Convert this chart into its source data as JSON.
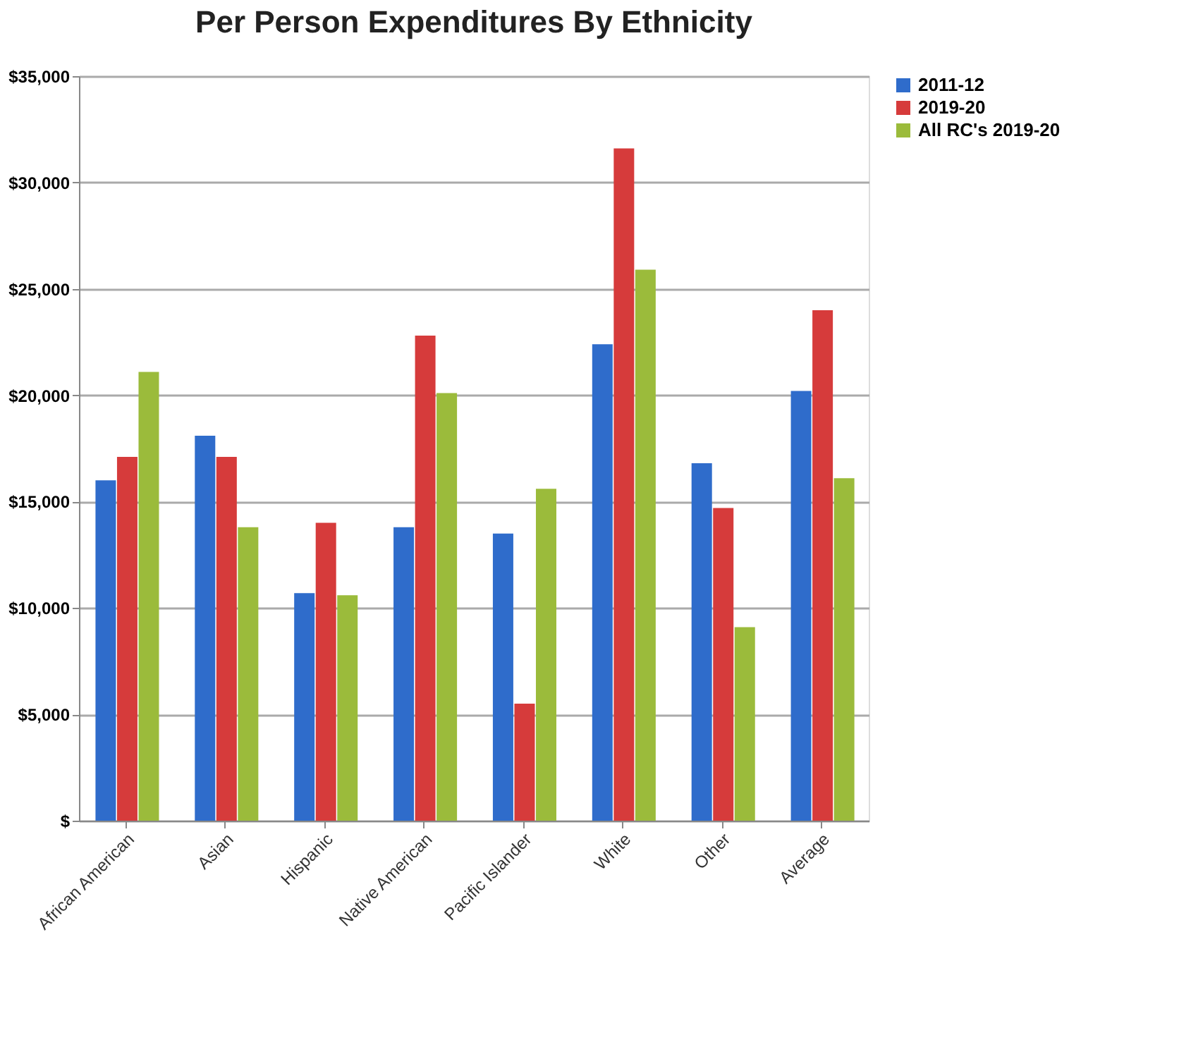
{
  "chart_data": {
    "type": "bar",
    "title": "Per Person Expenditures By Ethnicity",
    "categories": [
      "African American",
      "Asian",
      "Hispanic",
      "Native American",
      "Pacific Islander",
      "White",
      "Other",
      "Average"
    ],
    "series": [
      {
        "name": "2011-12",
        "color": "#2f6ccb",
        "values": [
          16000,
          18100,
          10700,
          13800,
          13500,
          22400,
          16800,
          20200
        ]
      },
      {
        "name": "2019-20",
        "color": "#d63b3b",
        "values": [
          17100,
          17100,
          14000,
          22800,
          5500,
          31600,
          14700,
          24000
        ]
      },
      {
        "name": "All RC's 2019-20",
        "color": "#9bbb3b",
        "values": [
          21100,
          13800,
          10600,
          20100,
          15600,
          25900,
          9100,
          16100
        ]
      }
    ],
    "ylim": [
      0,
      35000
    ],
    "yticks": [
      {
        "value": 0,
        "label": "$"
      },
      {
        "value": 5000,
        "label": "$5,000"
      },
      {
        "value": 10000,
        "label": "$10,000"
      },
      {
        "value": 15000,
        "label": "$15,000"
      },
      {
        "value": 20000,
        "label": "$20,000"
      },
      {
        "value": 25000,
        "label": "$25,000"
      },
      {
        "value": 30000,
        "label": "$30,000"
      },
      {
        "value": 35000,
        "label": "$35,000"
      }
    ],
    "grid": "y",
    "legend": "right"
  }
}
